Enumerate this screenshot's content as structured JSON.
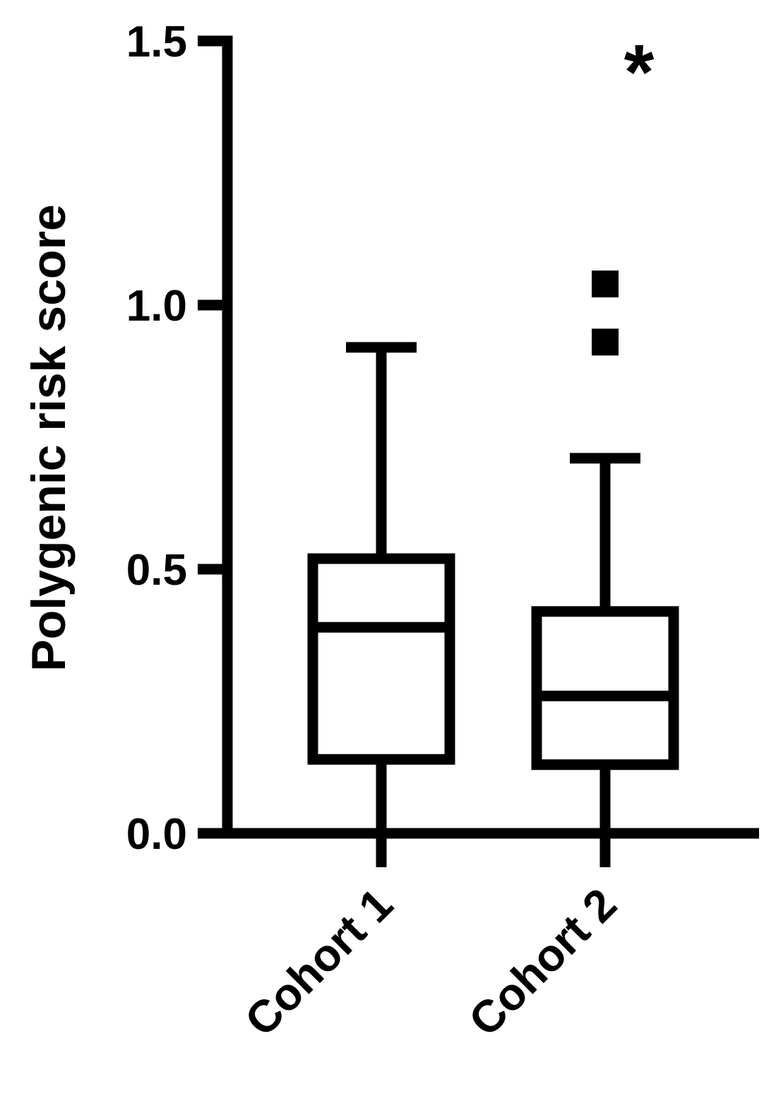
{
  "chart_data": {
    "type": "box",
    "ylabel": "Polygenic risk score",
    "categories": [
      "Cohort 1",
      "Cohort 2"
    ],
    "whisker_low": [
      0.0,
      0.0
    ],
    "q1": [
      0.14,
      0.13
    ],
    "median": [
      0.39,
      0.26
    ],
    "q3": [
      0.52,
      0.42
    ],
    "whisker_high": [
      0.92,
      0.71
    ],
    "outliers": [
      [],
      [
        1.04,
        0.93
      ]
    ],
    "color": "#000000",
    "ylim": [
      0,
      1.5
    ],
    "yticks": [
      {
        "value": 0,
        "label": "0.0"
      },
      {
        "value": 0.5,
        "label": "0.5"
      },
      {
        "value": 1,
        "label": "1.0"
      },
      {
        "value": 1.5,
        "label": "1.5"
      }
    ],
    "annotations": [
      {
        "text": "*",
        "category": 1
      }
    ]
  }
}
